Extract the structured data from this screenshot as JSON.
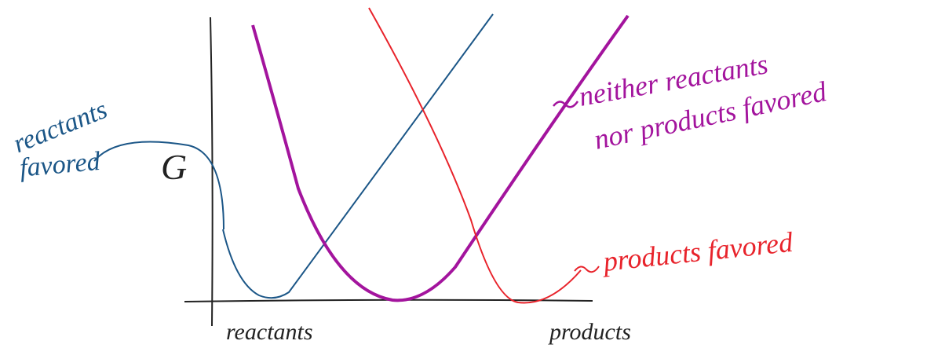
{
  "axes": {
    "y_label": "G",
    "x_start": "reactants",
    "x_end": "products"
  },
  "curves": [
    {
      "label_lines": [
        "reactants",
        "favored"
      ],
      "color": "#1b5687"
    },
    {
      "label_lines": [
        "neither reactants",
        "nor products favored"
      ],
      "color": "#a3149d"
    },
    {
      "label_lines": [
        "products favored"
      ],
      "color": "#e8232b"
    }
  ]
}
